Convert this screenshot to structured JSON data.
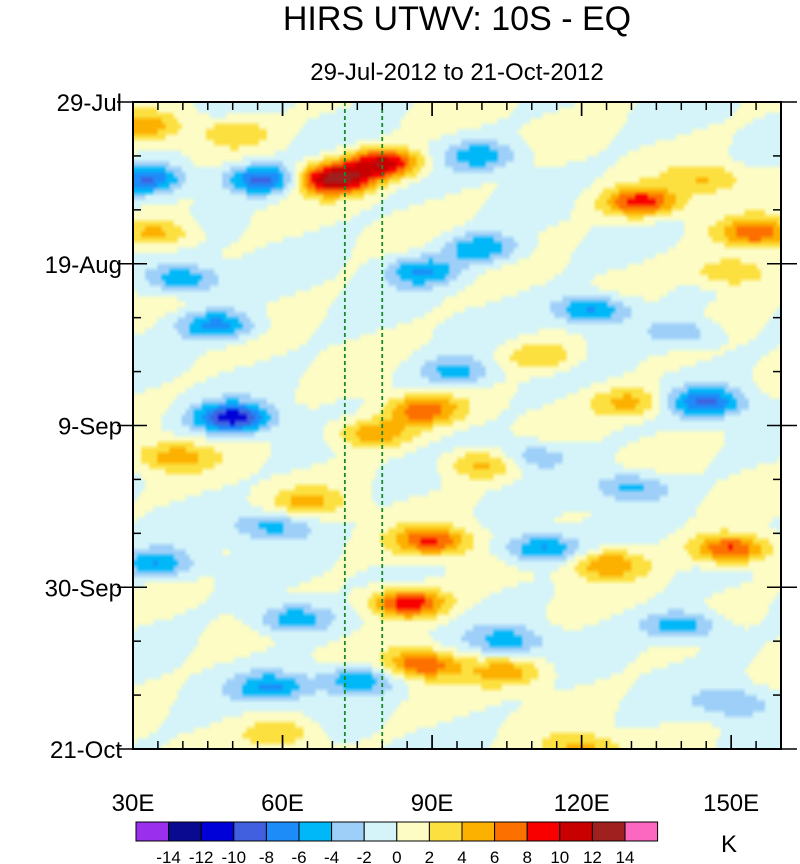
{
  "chart_data": {
    "type": "heatmap",
    "title": "HIRS UTWV: 10S - EQ",
    "subtitle": "29-Jul-2012 to 21-Oct-2012",
    "xlabel": "",
    "ylabel": "",
    "x_range": [
      30,
      160
    ],
    "x_ticks": [
      {
        "value": 30,
        "label": "30E"
      },
      {
        "value": 60,
        "label": "60E"
      },
      {
        "value": 90,
        "label": "90E"
      },
      {
        "value": 120,
        "label": "120E"
      },
      {
        "value": 150,
        "label": "150E"
      }
    ],
    "y_range_days": [
      0,
      84
    ],
    "y_ticks": [
      {
        "value": 0,
        "label": "29-Jul"
      },
      {
        "value": 21,
        "label": "19-Aug"
      },
      {
        "value": 42,
        "label": "9-Sep"
      },
      {
        "value": 63,
        "label": "30-Sep"
      },
      {
        "value": 84,
        "label": "21-Oct"
      }
    ],
    "reference_lines_lon": [
      72.5,
      80
    ],
    "reference_line_color": "#1a8a2a",
    "colorbar": {
      "unit": "K",
      "levels": [
        "-14",
        "-12",
        "-10",
        "-8",
        "-6",
        "-4",
        "-2",
        "0",
        "2",
        "4",
        "6",
        "8",
        "10",
        "12",
        "14"
      ],
      "colors": [
        "#9a30ee",
        "#0a0a90",
        "#0000d8",
        "#4060e0",
        "#1e8cf8",
        "#00b8f8",
        "#9ecff8",
        "#d4f4fa",
        "#fcfcc4",
        "#fce040",
        "#fcb000",
        "#fc7000",
        "#f80000",
        "#c80000",
        "#a02020",
        "#fc68c0"
      ]
    },
    "anomaly_features": [
      {
        "lon": 70,
        "day": 10,
        "value": 13
      },
      {
        "lon": 80,
        "day": 8,
        "value": 11
      },
      {
        "lon": 88,
        "day": 40,
        "value": 7
      },
      {
        "lon": 78,
        "day": 43,
        "value": 6
      },
      {
        "lon": 85,
        "day": 65,
        "value": 10
      },
      {
        "lon": 88,
        "day": 73,
        "value": 8
      },
      {
        "lon": 150,
        "day": 58,
        "value": 9
      },
      {
        "lon": 132,
        "day": 13,
        "value": 9
      },
      {
        "lon": 155,
        "day": 17,
        "value": 8
      },
      {
        "lon": 90,
        "day": 57,
        "value": 8
      },
      {
        "lon": 32,
        "day": 3,
        "value": 5
      },
      {
        "lon": 50,
        "day": 4,
        "value": 4
      },
      {
        "lon": 120,
        "day": 84,
        "value": 5
      },
      {
        "lon": 50,
        "day": 41,
        "value": -11
      },
      {
        "lon": 56,
        "day": 10,
        "value": -9
      },
      {
        "lon": 33,
        "day": 10,
        "value": -8
      },
      {
        "lon": 47,
        "day": 29,
        "value": -7
      },
      {
        "lon": 122,
        "day": 27,
        "value": -7
      },
      {
        "lon": 145,
        "day": 39,
        "value": -8
      },
      {
        "lon": 112,
        "day": 58,
        "value": -7
      },
      {
        "lon": 58,
        "day": 76,
        "value": -6
      },
      {
        "lon": 75,
        "day": 75,
        "value": -6
      },
      {
        "lon": 62,
        "day": 67,
        "value": -6
      },
      {
        "lon": 100,
        "day": 19,
        "value": -6
      },
      {
        "lon": 95,
        "day": 35,
        "value": -5
      },
      {
        "lon": 130,
        "day": 50,
        "value": -5
      },
      {
        "lon": 140,
        "day": 68,
        "value": -6
      },
      {
        "lon": 105,
        "day": 70,
        "value": -5
      },
      {
        "lon": 40,
        "day": 23,
        "value": -6
      },
      {
        "lon": 88,
        "day": 22,
        "value": -6
      },
      {
        "lon": 100,
        "day": 7,
        "value": -5
      },
      {
        "lon": 110,
        "day": 46,
        "value": -4
      },
      {
        "lon": 58,
        "day": 55,
        "value": -5
      },
      {
        "lon": 140,
        "day": 30,
        "value": -4
      },
      {
        "lon": 35,
        "day": 60,
        "value": -6
      },
      {
        "lon": 150,
        "day": 78,
        "value": -4
      },
      {
        "lon": 130,
        "day": 39,
        "value": 5
      },
      {
        "lon": 38,
        "day": 46,
        "value": 5
      },
      {
        "lon": 65,
        "day": 52,
        "value": 4
      },
      {
        "lon": 35,
        "day": 17,
        "value": 5
      },
      {
        "lon": 150,
        "day": 22,
        "value": 5
      },
      {
        "lon": 125,
        "day": 60,
        "value": 6
      },
      {
        "lon": 100,
        "day": 47,
        "value": 5
      },
      {
        "lon": 60,
        "day": 82,
        "value": 4
      },
      {
        "lon": 112,
        "day": 33,
        "value": 4
      },
      {
        "lon": 145,
        "day": 10,
        "value": 4
      },
      {
        "lon": 105,
        "day": 74,
        "value": 5
      }
    ]
  }
}
